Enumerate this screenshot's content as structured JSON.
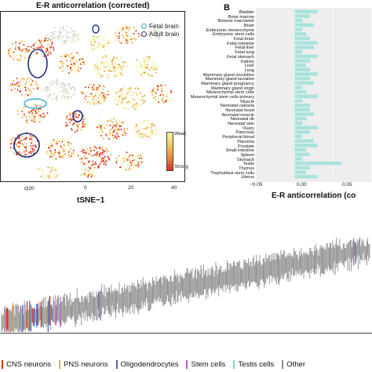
{
  "panel_a": {
    "title": "E-R anticorrelation (corrected)",
    "legend": {
      "fetal": "Fetal brain",
      "adult": "Adult brain"
    },
    "colorbar": {
      "weak": "Weak",
      "strong": "Strong"
    },
    "x_ticks": [
      "⊟20",
      "0",
      "20",
      "40"
    ],
    "x_label": "tSNE−1",
    "colors": {
      "weak": "#f2ee9a",
      "mid": "#f0a53a",
      "strong": "#d7301f",
      "background": "#cfd4cc"
    }
  },
  "panel_b": {
    "letter": "B",
    "x_label": "E-R anticorrelation (co",
    "x_ticks": [
      "−0.05",
      "0.00",
      "0.05"
    ],
    "bar_color": "#a8e3dc"
  },
  "chart_data": {
    "type": "bar",
    "orientation": "horizontal",
    "xlabel": "E-R anticorrelation (co",
    "xlim": [
      -0.05,
      0.1
    ],
    "categories": [
      "Bladder",
      "Bone marrow",
      "Bonene marrowish",
      "Brain",
      "Embryonic mesenchyme",
      "Embryonic stem cells",
      "Fetal brain",
      "Fetal intestine",
      "Fetal liver",
      "Fetal lung",
      "Fetal stomach",
      "Kidney",
      "Liver",
      "Lung",
      "Mammary gland involution",
      "Mammary gland lactation",
      "Mammary gland pregnancy",
      "Mammary gland virgin",
      "Mesenchymal stem cells",
      "Mesenchymal stem cells primary",
      "Muscle",
      "Neonatal calvaria",
      "Neonatal heart",
      "Neonatal muscle",
      "Neonatal rib",
      "Neonatal skin",
      "Ovary",
      "Pancreas",
      "Peripheral blood",
      "Placenta",
      "Prostate",
      "Small intestine",
      "Spleen",
      "Stomach",
      "Testis",
      "Thymus",
      "Trophoblast stem cells",
      "Uterus"
    ],
    "values": [
      0.03,
      0.02,
      0.01,
      0.025,
      0.01,
      0.015,
      0.02,
      0.03,
      0.025,
      0.01,
      0.03,
      0.02,
      0.015,
      0.02,
      0.03,
      0.02,
      0.025,
      0.01,
      0.015,
      0.03,
      0.01,
      0.02,
      0.02,
      0.025,
      0.015,
      0.01,
      0.03,
      0.02,
      0.01,
      0.025,
      0.03,
      0.015,
      0.02,
      0.01,
      0.06,
      0.02,
      0.015,
      0.03
    ]
  },
  "bottom_legend": [
    {
      "label": "CNS neurons",
      "color": "#d7301f"
    },
    {
      "label": "PNS neurons",
      "color": "#f0a53a"
    },
    {
      "label": "Oligodendrocytes",
      "color": "#4a63b8"
    },
    {
      "label": "Stem cells",
      "color": "#b45cc8"
    },
    {
      "label": "Testis cells",
      "color": "#7fd9cf"
    },
    {
      "label": "Other",
      "color": "#8c8c8c"
    }
  ]
}
